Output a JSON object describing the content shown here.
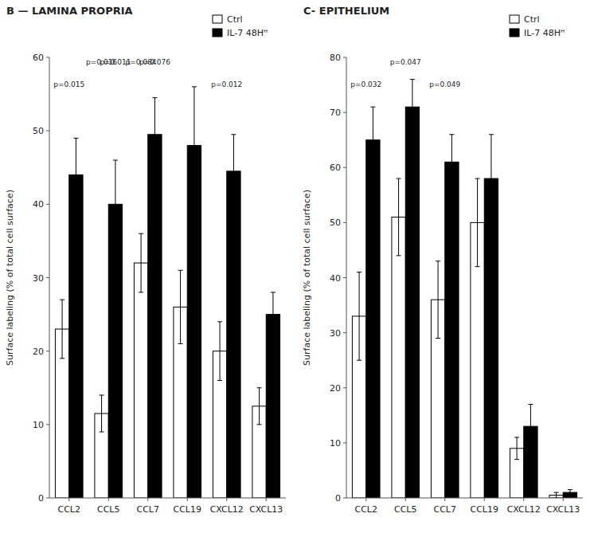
{
  "chart_data": [
    {
      "type": "bar",
      "title": "B — LAMINA PROPRIA",
      "categories": [
        "CCL2",
        "CCL5",
        "CCL7",
        "CCL19",
        "CXCL12",
        "CXCL13"
      ],
      "series": [
        {
          "name": "Ctrl",
          "color": "white",
          "values": [
            23,
            11.5,
            32,
            26,
            20,
            12.5
          ],
          "errors": [
            4,
            2.5,
            4,
            5,
            4,
            2.5
          ]
        },
        {
          "name": "IL-7 48Hᴴ",
          "color": "black",
          "values": [
            44,
            40,
            49.5,
            48,
            44.5,
            25
          ],
          "errors": [
            5,
            6,
            5,
            8,
            5,
            3
          ]
        }
      ],
      "y_label": "Surface labeling (% of total cell surface)",
      "ylim": [
        0,
        60
      ],
      "yticks": [
        0,
        10,
        20,
        30,
        40,
        50,
        60
      ],
      "grid": false,
      "legend": "upper right",
      "annotations": [
        {
          "text": "p=0.015",
          "category": 0,
          "y": 55.8
        },
        {
          "text": "p=0.016",
          "category": 1,
          "series": 0,
          "y": 58.8
        },
        {
          "text": "p=0.011",
          "category": 1,
          "series": 1,
          "y": 58.8
        },
        {
          "text": "p=0.084",
          "category": 2,
          "series": 0,
          "y": 58.8
        },
        {
          "text": "p=0.076",
          "category": 2,
          "series": 1,
          "y": 58.8
        },
        {
          "text": "p=0.012",
          "category": 4,
          "y": 55.8
        }
      ]
    },
    {
      "type": "bar",
      "title": "C- EPITHELIUM",
      "categories": [
        "CCL2",
        "CCL5",
        "CCL7",
        "CCL19",
        "CXCL12",
        "CXCL13"
      ],
      "series": [
        {
          "name": "Ctrl",
          "color": "white",
          "values": [
            33,
            51,
            36,
            50,
            9,
            0.5
          ],
          "errors": [
            8,
            7,
            7,
            8,
            2,
            0.5
          ]
        },
        {
          "name": "IL-7 48Hᴴ",
          "color": "black",
          "values": [
            65,
            71,
            61,
            58,
            13,
            1.0
          ],
          "errors": [
            6,
            5,
            5,
            8,
            4,
            0.5
          ]
        }
      ],
      "y_label": "Surface labeling (% of total cell surface)",
      "ylim": [
        0,
        80
      ],
      "yticks": [
        0,
        10,
        20,
        30,
        40,
        50,
        60,
        70,
        80
      ],
      "grid": false,
      "legend": "upper right",
      "annotations": [
        {
          "text": "p=0.032",
          "category": 0,
          "y": 74.4
        },
        {
          "text": "p=0.047",
          "category": 1,
          "y": 78.4
        },
        {
          "text": "p=0.049",
          "category": 2,
          "y": 74.4
        }
      ]
    }
  ]
}
